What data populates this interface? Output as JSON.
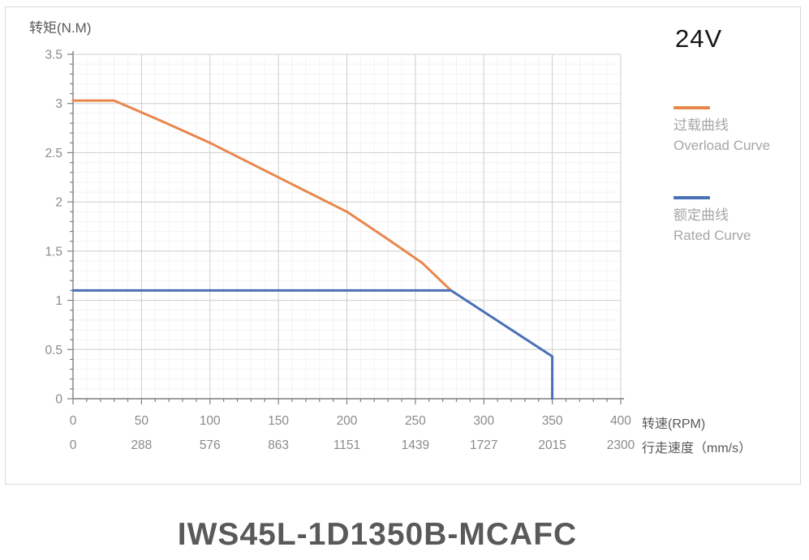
{
  "page": {
    "title": "IWS45L-1D1350B-MCAFC",
    "voltage_label": "24V"
  },
  "axes": {
    "y_title": "转矩(N.M)",
    "x_title_rpm": "转速(RPM)",
    "x_title_speed": "行走速度（mm/s）"
  },
  "legend": {
    "items": [
      {
        "id": "overload-curve",
        "color": "#E8874D",
        "label_zh": "过载曲线",
        "label_en": "Overload Curve"
      },
      {
        "id": "rated-curve",
        "color": "#4A70B5",
        "label_zh": "额定曲线",
        "label_en": "Rated Curve"
      }
    ]
  },
  "chart_data": {
    "type": "line",
    "title": "24V torque vs speed",
    "xlabel": "转速(RPM) / 行走速度（mm/s）",
    "ylabel": "转矩(N.M)",
    "xlim": [
      0,
      400
    ],
    "ylim": [
      0,
      3.5
    ],
    "grid": true,
    "legend_position": "right",
    "x_ticks_rpm": [
      0,
      50,
      100,
      150,
      200,
      250,
      300,
      350,
      400
    ],
    "x_ticks_speed": [
      0,
      288,
      576,
      863,
      1151,
      1439,
      1727,
      2015,
      2300
    ],
    "y_ticks": [
      0,
      0.5,
      1,
      1.5,
      2,
      2.5,
      3,
      3.5
    ],
    "x_minor_step": 10,
    "y_minor_step": 0.1,
    "series": [
      {
        "name": "过载曲线 Overload Curve",
        "color": "#E8874D",
        "points": [
          [
            0,
            3.03
          ],
          [
            30,
            3.03
          ],
          [
            65,
            2.82
          ],
          [
            100,
            2.6
          ],
          [
            150,
            2.25
          ],
          [
            200,
            1.9
          ],
          [
            230,
            1.62
          ],
          [
            255,
            1.38
          ],
          [
            276,
            1.1
          ]
        ]
      },
      {
        "name": "额定曲线 Rated Curve",
        "color": "#4A70B5",
        "points": [
          [
            0,
            1.1
          ],
          [
            276,
            1.1
          ],
          [
            350,
            0.43
          ],
          [
            350,
            0
          ]
        ]
      }
    ]
  }
}
